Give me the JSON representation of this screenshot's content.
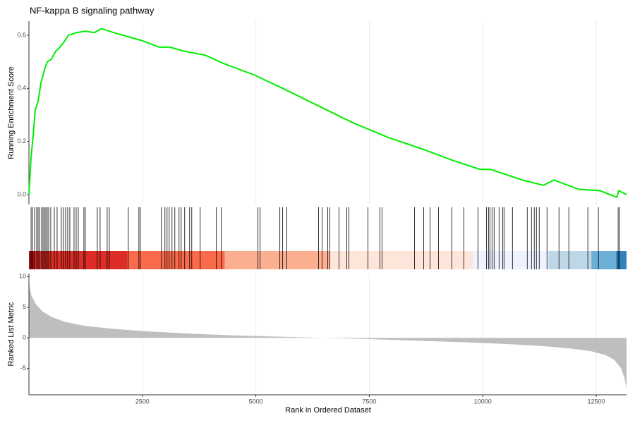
{
  "chart_data": [
    {
      "type": "line",
      "title": "NF-kappa B signaling pathway",
      "y_label": "Running Enrichment Score",
      "color": "#00ee00",
      "x": [
        0,
        47,
        93,
        140,
        202,
        264,
        342,
        404,
        497,
        590,
        683,
        776,
        870,
        1056,
        1242,
        1444,
        1600,
        1864,
        2174,
        2485,
        2873,
        3106,
        3417,
        3882,
        4271,
        4970,
        5591,
        6367,
        7144,
        7920,
        8697,
        9318,
        9939,
        10172,
        10871,
        11337,
        11569,
        12113,
        12579,
        12952,
        12998,
        13168
      ],
      "values": [
        0,
        0.14,
        0.22,
        0.32,
        0.35,
        0.42,
        0.47,
        0.5,
        0.51,
        0.54,
        0.555,
        0.575,
        0.6,
        0.61,
        0.615,
        0.61,
        0.625,
        0.61,
        0.595,
        0.58,
        0.555,
        0.555,
        0.54,
        0.525,
        0.495,
        0.45,
        0.4,
        0.335,
        0.27,
        0.215,
        0.17,
        0.13,
        0.095,
        0.095,
        0.055,
        0.035,
        0.055,
        0.02,
        0.015,
        -0.01,
        0.015,
        0
      ],
      "xlim": [
        0,
        13168
      ],
      "ylim": [
        -0.037,
        0.653
      ],
      "yticks": [
        {
          "value": 0,
          "label": "0.0"
        },
        0.2,
        0.4,
        0.6
      ]
    },
    {
      "type": "rug",
      "color": "#000000",
      "x": [
        47,
        78,
        124,
        171,
        202,
        233,
        280,
        311,
        342,
        373,
        404,
        435,
        481,
        559,
        621,
        714,
        761,
        808,
        854,
        901,
        994,
        1041,
        1087,
        1211,
        1242,
        1506,
        1569,
        1724,
        1771,
        2190,
        2423,
        2454,
        2920,
        2997,
        3044,
        3091,
        3153,
        3215,
        3308,
        3355,
        3432,
        3541,
        3588,
        3774,
        4131,
        4240,
        5047,
        5094,
        5529,
        5591,
        5684,
        6383,
        6461,
        6585,
        6632,
        6834,
        7004,
        7051,
        7470,
        7734,
        7781,
        8495,
        8697,
        8837,
        9023,
        9318,
        9582,
        9893,
        10084,
        10126,
        10157,
        10204,
        10250,
        10359,
        10437,
        10468,
        10654,
        10980,
        11073,
        11135,
        11182,
        11244,
        11415,
        11679,
        11896,
        12315,
        12548,
        12983,
        13014
      ],
      "band_edges": [
        0,
        124,
        2174,
        4317,
        6632,
        9784,
        11446,
        12393,
        12937,
        13168
      ],
      "band_colors": [
        "#a50f15",
        "#de2d26",
        "#fb6a4a",
        "#fcae91",
        "#fee5d9",
        "#eff3ff",
        "#bdd7e7",
        "#6baed6",
        "#3182bd"
      ],
      "xlim": [
        0,
        13168
      ]
    },
    {
      "type": "area",
      "x_label": "Rank in Ordered Dataset",
      "y_label": "Ranked List Metric",
      "color": "#bebebe",
      "x": [
        0,
        50,
        150,
        300,
        500,
        800,
        1200,
        1800,
        2500,
        3500,
        4500,
        5500,
        6500,
        7500,
        8500,
        9500,
        10500,
        11000,
        11500,
        12000,
        12400,
        12700,
        12900,
        13050,
        13120,
        13168
      ],
      "values": [
        9,
        7,
        5.5,
        4.3,
        3.4,
        2.6,
        2,
        1.5,
        1.1,
        0.7,
        0.4,
        0.2,
        0,
        -0.2,
        -0.45,
        -0.7,
        -1,
        -1.2,
        -1.45,
        -1.8,
        -2.2,
        -2.8,
        -3.6,
        -5,
        -6.5,
        -8.3
      ],
      "xlim": [
        0,
        13168
      ],
      "ylim": [
        -9.3,
        10.5
      ],
      "xticks": [
        2500,
        5000,
        7500,
        10000,
        12500
      ],
      "yticks": [
        -5,
        0,
        5,
        10
      ]
    }
  ]
}
